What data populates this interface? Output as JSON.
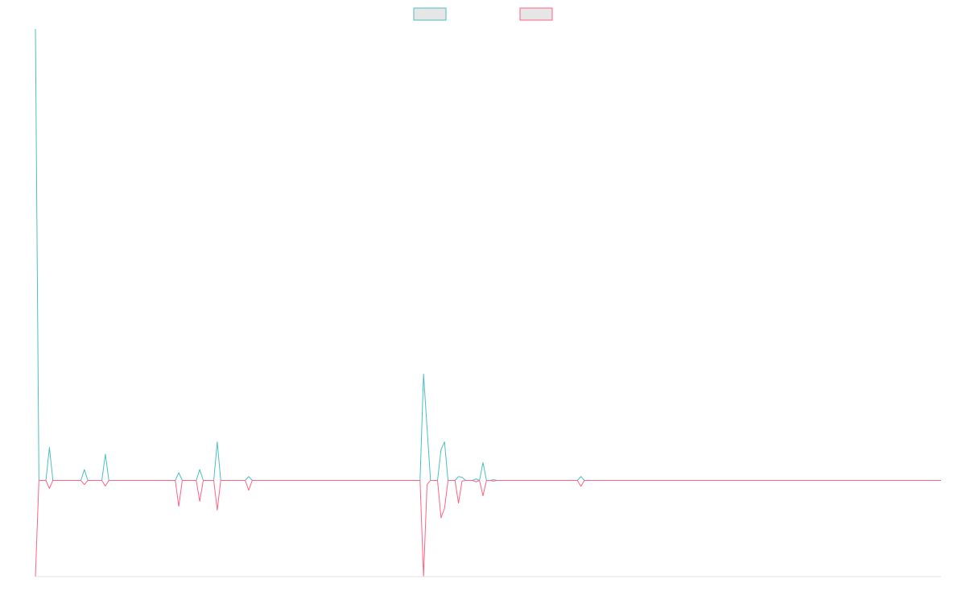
{
  "chart_data": {
    "type": "line",
    "title": "",
    "xlabel": "",
    "ylabel": "",
    "grid": false,
    "legend": "top-center",
    "xlim": [
      0,
      259
    ],
    "ylim": [
      -27.5,
      129
    ],
    "series": [
      {
        "color": "#4bc0c0",
        "fill": "#e6e6e6",
        "points": [
          [
            0,
            129
          ],
          [
            1,
            0
          ],
          [
            2,
            0
          ],
          [
            3,
            0
          ],
          [
            4,
            9.4
          ],
          [
            5,
            0
          ],
          [
            13,
            0
          ],
          [
            14,
            3.1
          ],
          [
            15,
            0
          ],
          [
            19,
            0
          ],
          [
            20,
            7.5
          ],
          [
            21,
            0
          ],
          [
            40,
            0
          ],
          [
            41,
            2.2
          ],
          [
            42,
            0
          ],
          [
            46,
            0
          ],
          [
            47,
            3.1
          ],
          [
            48,
            0
          ],
          [
            51,
            0
          ],
          [
            52,
            11
          ],
          [
            53,
            0
          ],
          [
            60,
            0
          ],
          [
            61,
            1.1
          ],
          [
            62,
            0
          ],
          [
            110,
            0
          ],
          [
            111,
            30.4
          ],
          [
            112,
            15
          ],
          [
            113,
            0
          ],
          [
            115,
            0
          ],
          [
            116,
            8.8
          ],
          [
            117,
            11
          ],
          [
            118,
            0
          ],
          [
            120,
            0
          ],
          [
            121,
            1.1
          ],
          [
            122,
            0.9
          ],
          [
            123,
            0
          ],
          [
            125,
            0
          ],
          [
            126,
            0.4
          ],
          [
            127,
            0
          ],
          [
            128,
            5.1
          ],
          [
            129,
            0
          ],
          [
            130,
            0
          ],
          [
            131,
            0.2
          ],
          [
            132,
            0
          ],
          [
            155,
            0
          ],
          [
            156,
            1.1
          ],
          [
            157,
            0
          ],
          [
            259,
            0
          ]
        ]
      },
      {
        "color": "#ff6384",
        "fill": "#e6e6e6",
        "points": [
          [
            0,
            -27.5
          ],
          [
            1,
            0
          ],
          [
            3,
            0
          ],
          [
            4,
            -2.3
          ],
          [
            5,
            0
          ],
          [
            13,
            0
          ],
          [
            14,
            -1.2
          ],
          [
            15,
            0
          ],
          [
            19,
            0
          ],
          [
            20,
            -1.6
          ],
          [
            21,
            0
          ],
          [
            40,
            0
          ],
          [
            41,
            -7.4
          ],
          [
            42,
            0
          ],
          [
            46,
            0
          ],
          [
            47,
            -6
          ],
          [
            48,
            0
          ],
          [
            51,
            0
          ],
          [
            52,
            -8.5
          ],
          [
            53,
            0
          ],
          [
            60,
            0
          ],
          [
            61,
            -2.8
          ],
          [
            62,
            0
          ],
          [
            110,
            0
          ],
          [
            111,
            -27.5
          ],
          [
            112,
            -1.2
          ],
          [
            113,
            0
          ],
          [
            115,
            0
          ],
          [
            116,
            -10.7
          ],
          [
            117,
            -8
          ],
          [
            118,
            0
          ],
          [
            120,
            0
          ],
          [
            121,
            -6.5
          ],
          [
            122,
            -0.2
          ],
          [
            123,
            0
          ],
          [
            125,
            0
          ],
          [
            126,
            -0.4
          ],
          [
            127,
            0
          ],
          [
            128,
            -4.4
          ],
          [
            129,
            0
          ],
          [
            130,
            0
          ],
          [
            131,
            -0.2
          ],
          [
            132,
            0
          ],
          [
            155,
            0
          ],
          [
            156,
            -1.7
          ],
          [
            157,
            0
          ],
          [
            259,
            0
          ]
        ]
      }
    ]
  }
}
